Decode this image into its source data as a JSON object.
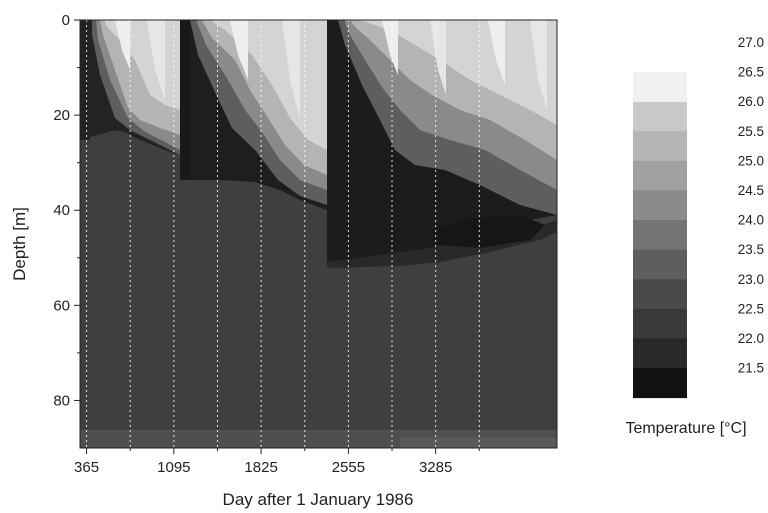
{
  "chart_data": {
    "type": "heatmap",
    "title": "",
    "xlabel": "Day after 1 January 1986",
    "ylabel": "Depth [m]",
    "xlim": [
      310,
      4300
    ],
    "ylim": [
      0,
      90
    ],
    "y_inverted": true,
    "x_ticks": [
      "365",
      "1095",
      "1825",
      "2555",
      "3285"
    ],
    "x_tick_values": [
      365,
      1095,
      1825,
      2555,
      3285
    ],
    "y_ticks": [
      "0",
      "20",
      "40",
      "60",
      "80"
    ],
    "y_tick_values": [
      0,
      20,
      40,
      60,
      80
    ],
    "year_boundaries": [
      365,
      730,
      1095,
      1460,
      1825,
      2190,
      2555,
      2920,
      3285,
      3650
    ],
    "colorbar": {
      "title": "Temperature [°C]",
      "levels": [
        "27.0",
        "26.5",
        "26.0",
        "25.5",
        "25.0",
        "24.5",
        "24.0",
        "23.5",
        "23.0",
        "22.5",
        "22.0",
        "21.5"
      ],
      "colors": [
        "#f0f0f0",
        "#dcdcdc",
        "#c8c8c8",
        "#b4b4b4",
        "#a0a0a0",
        "#8a8a8a",
        "#747474",
        "#5e5e5e",
        "#4a4a4a",
        "#393939",
        "#282828",
        "#111111"
      ]
    },
    "mixed_layer_bottom": [
      {
        "day": 330,
        "depth": 0
      },
      {
        "day": 370,
        "depth": 3
      },
      {
        "day": 420,
        "depth": 12
      },
      {
        "day": 520,
        "depth": 20
      },
      {
        "day": 640,
        "depth": 25
      },
      {
        "day": 830,
        "depth": 26
      },
      {
        "day": 1080,
        "depth": 30
      },
      {
        "day": 1100,
        "depth": 4
      },
      {
        "day": 1180,
        "depth": 13
      },
      {
        "day": 1330,
        "depth": 22
      },
      {
        "day": 1530,
        "depth": 27
      },
      {
        "day": 1760,
        "depth": 33
      },
      {
        "day": 1950,
        "depth": 37
      },
      {
        "day": 2200,
        "depth": 47
      },
      {
        "day": 2330,
        "depth": 4
      },
      {
        "day": 2400,
        "depth": 15
      },
      {
        "day": 2520,
        "depth": 20
      },
      {
        "day": 2640,
        "depth": 28
      },
      {
        "day": 2790,
        "depth": 32
      },
      {
        "day": 2950,
        "depth": 34
      },
      {
        "day": 3200,
        "depth": 34
      },
      {
        "day": 3520,
        "depth": 32
      },
      {
        "day": 3880,
        "depth": 31
      },
      {
        "day": 4300,
        "depth": 31
      }
    ]
  }
}
